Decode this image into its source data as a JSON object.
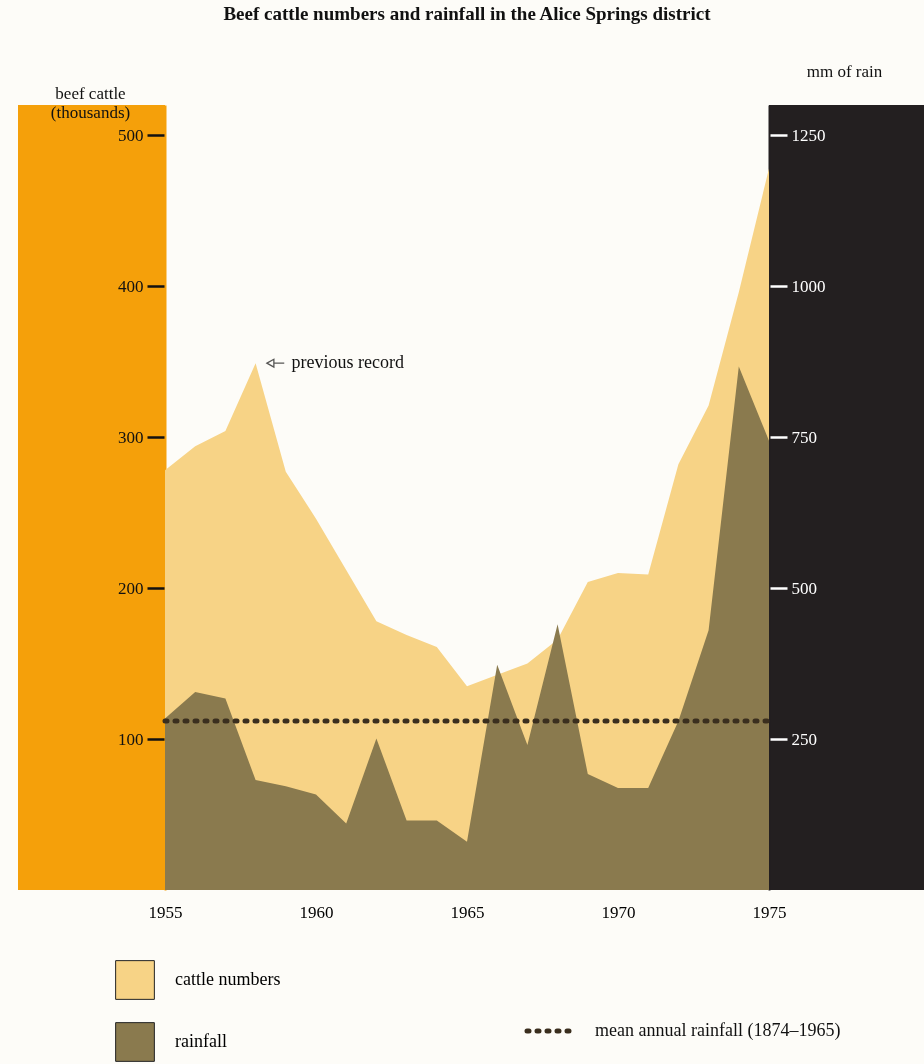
{
  "chart_data": {
    "type": "area",
    "title": "Beef cattle numbers and rainfall in the Alice Springs district",
    "ylabel": "beef cattle (thousands)",
    "y2label": "mm of rain",
    "x": [
      1955,
      1956,
      1957,
      1958,
      1959,
      1960,
      1961,
      1962,
      1963,
      1964,
      1965,
      1966,
      1967,
      1968,
      1969,
      1970,
      1971,
      1972,
      1973,
      1974,
      1975
    ],
    "series": [
      {
        "name": "cattle numbers",
        "color": "#f7d386",
        "x": [
          1955,
          1956,
          1957,
          1958,
          1959,
          1960,
          1961,
          1962,
          1963,
          1964,
          1965,
          1967,
          1968,
          1969,
          1970,
          1971,
          1972,
          1973,
          1974,
          1975
        ],
        "values": [
          278,
          294,
          304,
          349,
          277,
          246,
          212,
          178,
          169,
          161,
          135,
          150,
          166,
          204,
          210,
          209,
          282,
          321,
          396,
          478
        ]
      },
      {
        "name": "rainfall",
        "color": "#8a7a4e",
        "axis": "y2",
        "values": [
          284,
          328,
          317,
          182,
          172,
          158,
          110,
          251,
          115,
          115,
          80,
          373,
          240,
          440,
          192,
          169,
          169,
          280,
          430,
          867,
          744
        ]
      }
    ],
    "xlim": [
      1955,
      1975
    ],
    "xticks": [
      1955,
      1960,
      1965,
      1970,
      1975
    ],
    "ylim": [
      0,
      520
    ],
    "yticks": [
      100,
      200,
      300,
      400,
      500
    ],
    "y2lim": [
      0,
      1300
    ],
    "y2ticks": [
      250,
      500,
      750,
      1000,
      1250
    ],
    "ref_lines": [
      {
        "axis": "y2",
        "value": 280,
        "label": "mean annual rainfall (1874–1965)",
        "color": "#3a2e1e",
        "line_style": "dotted"
      }
    ],
    "annotations": [
      {
        "text": "previous record",
        "x": 1958,
        "y": 349
      }
    ],
    "legend": "bottom left",
    "grid": false
  }
}
